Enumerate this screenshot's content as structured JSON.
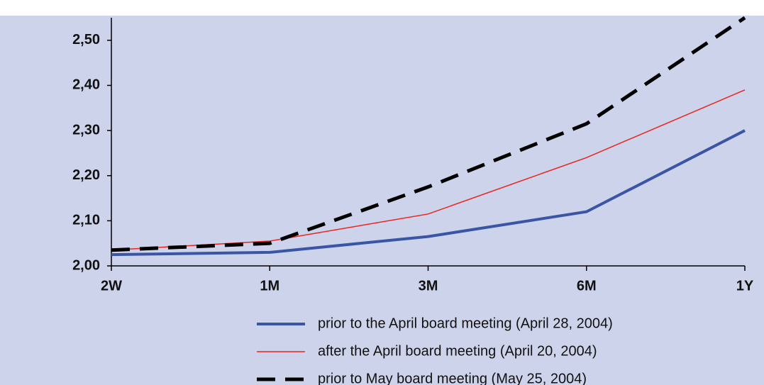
{
  "chart_data": {
    "type": "line",
    "categories": [
      "2W",
      "1M",
      "3M",
      "6M",
      "1Y"
    ],
    "series": [
      {
        "name": "prior to the April board meeting (April 28, 2004)",
        "color": "#3a55a4",
        "width": 4,
        "dash": "solid",
        "values": [
          2.025,
          2.03,
          2.065,
          2.12,
          2.3
        ]
      },
      {
        "name": "after the April board meeting (April 20, 2004)",
        "color": "#e8251f",
        "width": 1.5,
        "dash": "solid",
        "values": [
          2.035,
          2.055,
          2.115,
          2.24,
          2.39
        ]
      },
      {
        "name": "prior to May board meeting (May 25, 2004)",
        "color": "#000000",
        "width": 5,
        "dash": "dashed",
        "values": [
          2.035,
          2.05,
          2.175,
          2.315,
          2.55
        ]
      }
    ],
    "ylim": [
      2.0,
      2.55
    ],
    "yticks": [
      {
        "value": 2.0,
        "label": "2,00"
      },
      {
        "value": 2.1,
        "label": "2,10"
      },
      {
        "value": 2.2,
        "label": "2,20"
      },
      {
        "value": 2.3,
        "label": "2,30"
      },
      {
        "value": 2.4,
        "label": "2,40"
      },
      {
        "value": 2.5,
        "label": "2,50"
      }
    ],
    "grid": false,
    "legend": "bottom"
  }
}
